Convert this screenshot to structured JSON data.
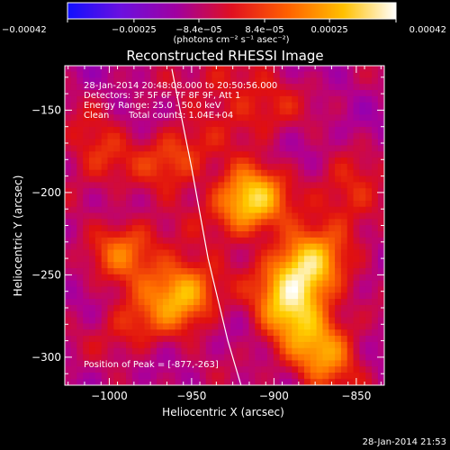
{
  "chart_data": {
    "type": "heatmap",
    "title": "Reconstructed RHESSI Image",
    "xlabel": "Heliocentric X (arcsec)",
    "ylabel": "Heliocentric Y (arcsec)",
    "xlim": [
      -1027,
      -833
    ],
    "ylim": [
      -317,
      -123
    ],
    "x_ticks": [
      -1000,
      -950,
      -900,
      -850
    ],
    "x_tick_labels": [
      "−1000",
      "−950",
      "−900",
      "−850"
    ],
    "y_ticks": [
      -300,
      -250,
      -200,
      -150
    ],
    "y_tick_labels": [
      "−300",
      "−250",
      "−200",
      "−150"
    ],
    "colorbar": {
      "range": [
        -0.00042,
        0.00042
      ],
      "ticks": [
        -0.00042,
        -0.00025,
        -8.4e-05,
        8.4e-05,
        0.00025,
        0.00042
      ],
      "tick_labels": [
        "−0.00042",
        "−0.00025",
        "−8.4e−05",
        "8.4e−05",
        "0.00025",
        "0.00042"
      ],
      "units": "(photons cm⁻² s⁻¹ asec⁻²)",
      "colors": [
        "#1010ff",
        "#7a00d0",
        "#b20090",
        "#e01010",
        "#ff7000",
        "#ffd000",
        "#ffffff"
      ]
    },
    "annotations": {
      "time_range": "28-Jan-2014 20:48:08.000 to 20:50:56.000",
      "detectors": "Detectors: 3F 5F 6F 7F 8F 9F, Att 1",
      "energy": "Energy Range: 25.0 - 50.0 keV",
      "method": "Clean",
      "counts": "Total counts: 1.04E+04",
      "peak": "Position of Peak = [-877,-263]"
    },
    "sources": [
      {
        "x": -915,
        "y": -205,
        "intensity": 0.00042
      },
      {
        "x": -880,
        "y": -245,
        "intensity": 0.0004
      },
      {
        "x": -890,
        "y": -270,
        "intensity": 0.00038
      },
      {
        "x": -870,
        "y": -300,
        "intensity": 0.0003
      },
      {
        "x": -955,
        "y": -260,
        "intensity": 0.00036
      },
      {
        "x": -990,
        "y": -235,
        "intensity": 0.00022
      },
      {
        "x": -985,
        "y": -280,
        "intensity": 0.00015
      },
      {
        "x": -960,
        "y": -180,
        "intensity": 0.0002
      },
      {
        "x": -1008,
        "y": -175,
        "intensity": 0.00016
      },
      {
        "x": -855,
        "y": -205,
        "intensity": 0.00018
      },
      {
        "x": -930,
        "y": -135,
        "intensity": 0.00013
      },
      {
        "x": -905,
        "y": -150,
        "intensity": 0.00012
      }
    ],
    "limb_curve": [
      [
        -962,
        -125
      ],
      [
        -950,
        -185
      ],
      [
        -940,
        -240
      ],
      [
        -928,
        -290
      ],
      [
        -920,
        -317
      ]
    ]
  },
  "footer": {
    "timestamp": "28-Jan-2014 21:53"
  }
}
